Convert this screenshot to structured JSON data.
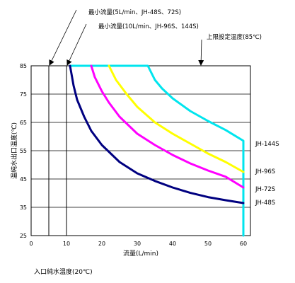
{
  "chart_data": {
    "type": "line",
    "xlabel": "流量(L/min)",
    "ylabel": "温純水出口温度(℃)",
    "xlim": [
      0,
      62
    ],
    "ylim": [
      25,
      85
    ],
    "xticks": [
      0,
      10,
      20,
      30,
      40,
      50,
      60
    ],
    "yticks": [
      25,
      35,
      45,
      55,
      65,
      75,
      85
    ],
    "grid": "horizontal",
    "series": [
      {
        "name": "JH-48S",
        "color": "#000080",
        "points": [
          [
            11,
            85
          ],
          [
            12,
            78
          ],
          [
            13,
            73
          ],
          [
            15,
            67
          ],
          [
            17,
            62
          ],
          [
            20,
            57
          ],
          [
            25,
            51
          ],
          [
            30,
            47
          ],
          [
            35,
            44.3
          ],
          [
            40,
            42
          ],
          [
            45,
            40.1
          ],
          [
            50,
            38.6
          ],
          [
            55,
            37.5
          ],
          [
            60,
            36.5
          ]
        ]
      },
      {
        "name": "JH-72S",
        "color": "#ff00ff",
        "points": [
          [
            17,
            85
          ],
          [
            18,
            81
          ],
          [
            20,
            76
          ],
          [
            22,
            72
          ],
          [
            25,
            67
          ],
          [
            30,
            61
          ],
          [
            35,
            57
          ],
          [
            40,
            53.5
          ],
          [
            45,
            50.5
          ],
          [
            50,
            48
          ],
          [
            55,
            45.8
          ],
          [
            60,
            42
          ]
        ]
      },
      {
        "name": "JH-96S",
        "color": "#ffff00",
        "points": [
          [
            22,
            85
          ],
          [
            24,
            80
          ],
          [
            27,
            75
          ],
          [
            30,
            70.5
          ],
          [
            35,
            65
          ],
          [
            40,
            61
          ],
          [
            45,
            57.5
          ],
          [
            50,
            54
          ],
          [
            55,
            51
          ],
          [
            60,
            47.5
          ]
        ]
      },
      {
        "name": "JH-144S",
        "color": "#00e5ee",
        "points": [
          [
            11,
            85
          ],
          [
            33,
            85
          ],
          [
            35,
            80
          ],
          [
            37,
            77
          ],
          [
            40,
            73.5
          ],
          [
            45,
            69
          ],
          [
            50,
            65.5
          ],
          [
            55,
            62.3
          ],
          [
            60,
            58.5
          ],
          [
            60,
            25
          ]
        ]
      }
    ],
    "vertical_lines": [
      {
        "x": 5,
        "label": "最小流量(5L/min、JH-48S、72S)"
      },
      {
        "x": 10,
        "label": "最小流量(10L/min、JH-96S、144S)"
      }
    ],
    "annotations": [
      {
        "text": "上限設定温度(85℃)",
        "x": 48,
        "y": 85
      }
    ]
  },
  "footnote": "入口純水温度(20℃)"
}
